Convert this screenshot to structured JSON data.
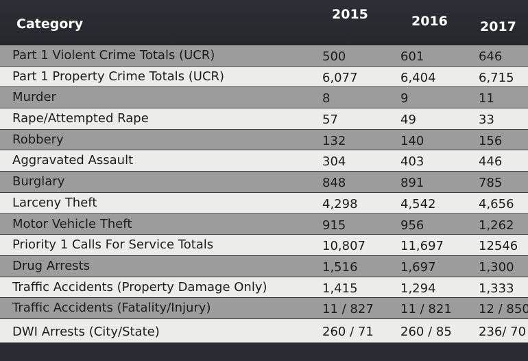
{
  "header": {
    "category_label": "Category",
    "years": [
      "2015",
      "2016",
      "2017"
    ]
  },
  "rows": [
    {
      "category": "Part 1 Violent Crime Totals (UCR)",
      "v2015": "500",
      "v2016": "601",
      "v2017": "646"
    },
    {
      "category": "Part 1 Property Crime Totals (UCR)",
      "v2015": "6,077",
      "v2016": "6,404",
      "v2017": "6,715"
    },
    {
      "category": "Murder",
      "v2015": "8",
      "v2016": "9",
      "v2017": "11"
    },
    {
      "category": "Rape/Attempted Rape",
      "v2015": "57",
      "v2016": "49",
      "v2017": "33"
    },
    {
      "category": "Robbery",
      "v2015": "132",
      "v2016": "140",
      "v2017": "156"
    },
    {
      "category": "Aggravated Assault",
      "v2015": "304",
      "v2016": "403",
      "v2017": "446"
    },
    {
      "category": "Burglary",
      "v2015": "848",
      "v2016": "891",
      "v2017": "785"
    },
    {
      "category": "Larceny Theft",
      "v2015": "4,298",
      "v2016": "4,542",
      "v2017": "4,656"
    },
    {
      "category": "Motor Vehicle Theft",
      "v2015": "915",
      "v2016": "956",
      "v2017": "1,262"
    },
    {
      "category": "Priority 1 Calls For Service Totals",
      "v2015": "10,807",
      "v2016": "11,697",
      "v2017": "12546"
    },
    {
      "category": "Drug Arrests",
      "v2015": "1,516",
      "v2016": "1,697",
      "v2017": "1,300"
    },
    {
      "category": "Traffic Accidents (Property Damage Only)",
      "v2015": "1,415",
      "v2016": "1,294",
      "v2017": "1,333"
    },
    {
      "category": "Traffic Accidents (Fatality/Injury)",
      "v2015": "11 / 827",
      "v2016": "11 / 821",
      "v2017": "12 / 850"
    },
    {
      "category": "DWI Arrests (City/State)",
      "v2015": "260 / 71",
      "v2016": "260 / 85",
      "v2017": "236/ 70"
    }
  ]
}
